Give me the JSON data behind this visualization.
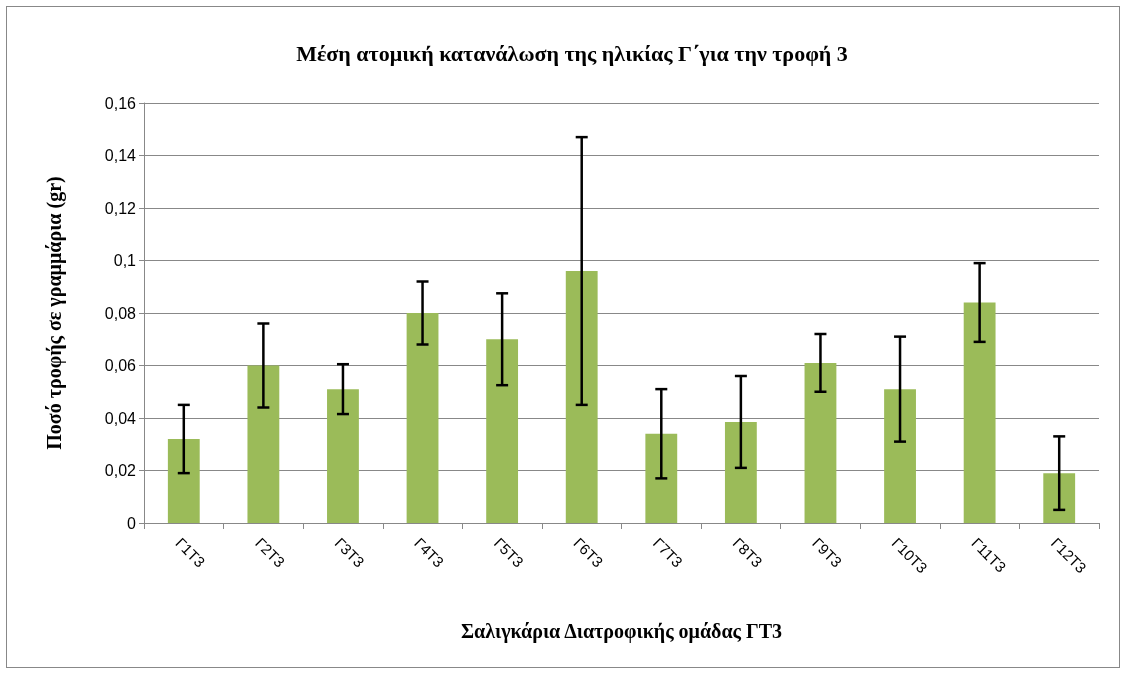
{
  "chart_data": {
    "type": "bar",
    "title": "Μέση ατομική κατανάλωση της ηλικίας Γ΄για την τροφή 3",
    "xlabel": "Σαλιγκάρια Διατροφικής ομάδας ΓΤ3",
    "ylabel": "Ποσό τροφής σε γραμμάρια (gr)",
    "categories": [
      "Γ1Τ3",
      "Γ2Τ3",
      "Γ3Τ3",
      "Γ4Τ3",
      "Γ5Τ3",
      "Γ6Τ3",
      "Γ7Τ3",
      "Γ8Τ3",
      "Γ9Τ3",
      "Γ10Τ3",
      "Γ11Τ3",
      "Γ12Τ3"
    ],
    "values": [
      0.032,
      0.06,
      0.051,
      0.08,
      0.07,
      0.096,
      0.034,
      0.0385,
      0.061,
      0.051,
      0.084,
      0.019
    ],
    "errors": [
      0.013,
      0.016,
      0.0095,
      0.012,
      0.0175,
      0.051,
      0.017,
      0.0175,
      0.011,
      0.02,
      0.015,
      0.014
    ],
    "color": "#9bbb59",
    "ylim": [
      0,
      0.16
    ],
    "yticks": [
      0,
      {
        "value": 0.02,
        "label": "0,02"
      },
      {
        "value": 0.04,
        "label": "0,04"
      },
      {
        "value": 0.06,
        "label": "0,06"
      },
      {
        "value": 0.08,
        "label": "0,08"
      },
      {
        "value": 0.1,
        "label": "0,1"
      },
      {
        "value": 0.12,
        "label": "0,12"
      },
      {
        "value": 0.14,
        "label": "0,14"
      },
      {
        "value": 0.16,
        "label": "0,16"
      }
    ],
    "grid": "y"
  }
}
